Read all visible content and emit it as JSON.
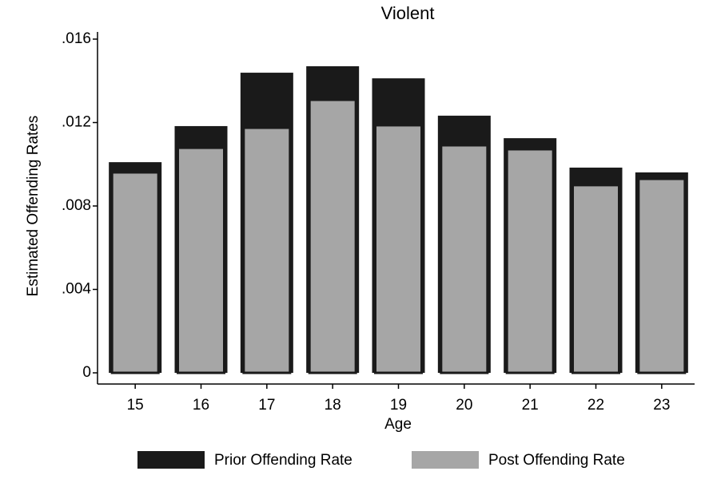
{
  "chart_data": {
    "type": "overlaid_bar",
    "title": "Violent",
    "x_label": "Age",
    "y_label": "Estimated Offending Rates",
    "categories": [
      "15",
      "16",
      "17",
      "18",
      "19",
      "20",
      "21",
      "22",
      "23"
    ],
    "series": [
      {
        "name": "Prior Offending Rate",
        "color": "#1a1a1a",
        "values": [
          0.0101,
          0.01183,
          0.01439,
          0.0147,
          0.01412,
          0.01233,
          0.01125,
          0.00984,
          0.00961
        ]
      },
      {
        "name": "Post Offending Rate",
        "color": "#a6a6a6",
        "values": [
          0.00961,
          0.01079,
          0.01175,
          0.01309,
          0.01187,
          0.01091,
          0.01072,
          0.009,
          0.0093
        ]
      }
    ],
    "ylim": [
      0,
      0.016
    ],
    "yticks": [
      0,
      {
        "value": 0.004,
        "label": ".004"
      },
      {
        "value": 0.008,
        "label": ".008"
      },
      {
        "value": 0.012,
        "label": ".012"
      },
      {
        "value": 0.016,
        "label": ".016"
      }
    ],
    "grid": false,
    "legend": "bottom"
  }
}
